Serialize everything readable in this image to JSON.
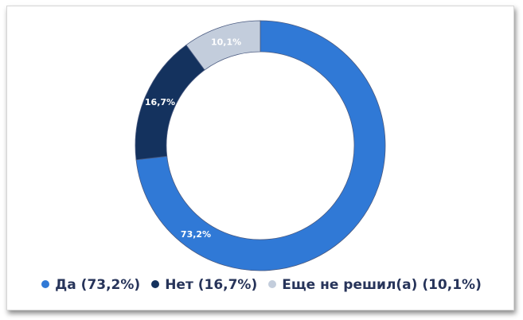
{
  "chart_data": {
    "type": "pie",
    "donut": true,
    "start": "top",
    "direction": "clockwise",
    "slices": [
      {
        "label": "Да",
        "value": 73.2,
        "data_label": "73,2%",
        "legend": "Да (73,2%)",
        "color": "#3079d6"
      },
      {
        "label": "Нет",
        "value": 16.7,
        "data_label": "16,7%",
        "legend": "Нет (16,7%)",
        "color": "#14325e"
      },
      {
        "label": "Еще не решил(а)",
        "value": 10.1,
        "data_label": "10,1%",
        "legend": "Еще не решил(а) (10,1%)",
        "color": "#c3cddc"
      }
    ],
    "legend_placement": "bottom"
  }
}
